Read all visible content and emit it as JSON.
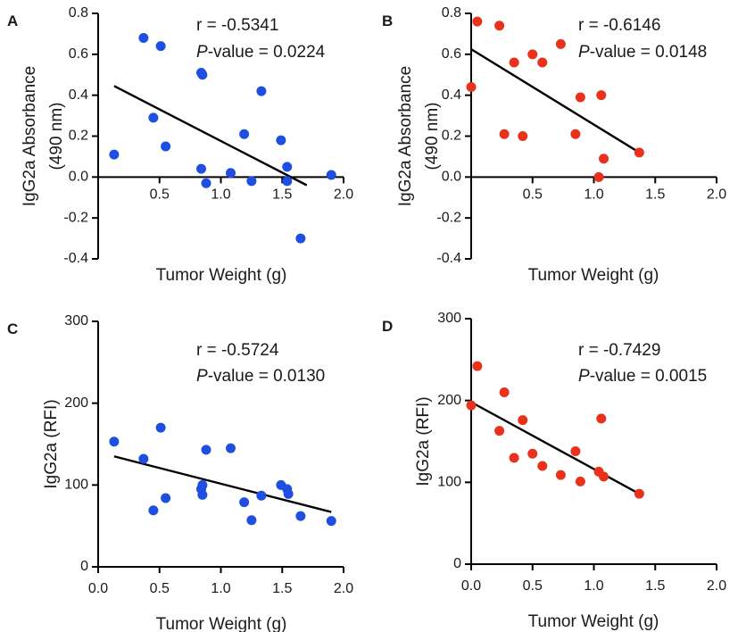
{
  "chart_data": [
    {
      "panel_label": "A",
      "type": "scatter",
      "color": "#1f4fe0",
      "ylabel_line1": "IgG2a Absorbance",
      "ylabel_line2": "(490 nm)",
      "xlabel": "Tumor Weight (g)",
      "xlim": [
        0,
        2.0
      ],
      "ylim": [
        -0.4,
        0.8
      ],
      "x_ticks": [
        0.5,
        1.0,
        1.5,
        2.0
      ],
      "x_tick_labels": [
        "0.5",
        "1.0",
        "1.5",
        "2.0"
      ],
      "y_ticks": [
        -0.4,
        -0.2,
        0.0,
        0.2,
        0.4,
        0.6,
        0.8
      ],
      "y_tick_labels": [
        "-0.4",
        "-0.2",
        "0.0",
        "0.2",
        "0.4",
        "0.6",
        "0.8"
      ],
      "annotation_r": "r = -0.5341",
      "annotation_p_italic": "P",
      "annotation_p_rest": "-value = 0.0224",
      "points": [
        [
          0.13,
          0.11
        ],
        [
          0.37,
          0.68
        ],
        [
          0.45,
          0.29
        ],
        [
          0.51,
          0.64
        ],
        [
          0.55,
          0.15
        ],
        [
          0.84,
          0.51
        ],
        [
          0.85,
          0.5
        ],
        [
          0.84,
          0.04
        ],
        [
          0.88,
          -0.03
        ],
        [
          1.08,
          0.02
        ],
        [
          1.19,
          0.21
        ],
        [
          1.25,
          -0.02
        ],
        [
          1.33,
          0.42
        ],
        [
          1.49,
          0.18
        ],
        [
          1.54,
          0.05
        ],
        [
          1.54,
          -0.02
        ],
        [
          1.65,
          -0.3
        ],
        [
          1.9,
          0.01
        ]
      ],
      "regression": {
        "x": [
          0.13,
          1.7
        ],
        "y": [
          0.445,
          -0.04
        ]
      }
    },
    {
      "panel_label": "B",
      "type": "scatter",
      "color": "#e8321c",
      "ylabel_line1": "IgG2a Absorbance",
      "ylabel_line2": "(490 nm)",
      "xlabel": "Tumor Weight (g)",
      "xlim": [
        0,
        2.0
      ],
      "ylim": [
        -0.4,
        0.8
      ],
      "x_ticks": [
        0.5,
        1.0,
        1.5,
        2.0
      ],
      "x_tick_labels": [
        "0.5",
        "1.0",
        "1.5",
        "2.0"
      ],
      "y_ticks": [
        -0.4,
        -0.2,
        0.0,
        0.2,
        0.4,
        0.6,
        0.8
      ],
      "y_tick_labels": [
        "-0.4",
        "-0.2",
        "0.0",
        "0.2",
        "0.4",
        "0.6",
        "0.8"
      ],
      "annotation_r": "r = -0.6146",
      "annotation_p_italic": "P",
      "annotation_p_rest": "-value = 0.0148",
      "points": [
        [
          0.0,
          0.44
        ],
        [
          0.05,
          0.76
        ],
        [
          0.23,
          0.74
        ],
        [
          0.27,
          0.21
        ],
        [
          0.35,
          0.56
        ],
        [
          0.42,
          0.2
        ],
        [
          0.5,
          0.6
        ],
        [
          0.58,
          0.56
        ],
        [
          0.73,
          0.65
        ],
        [
          0.85,
          0.21
        ],
        [
          0.89,
          0.39
        ],
        [
          1.04,
          0.0
        ],
        [
          1.06,
          0.4
        ],
        [
          1.08,
          0.09
        ],
        [
          1.37,
          0.12
        ]
      ],
      "regression": {
        "x": [
          0.0,
          1.37
        ],
        "y": [
          0.625,
          0.12
        ]
      }
    },
    {
      "panel_label": "C",
      "type": "scatter",
      "color": "#1f4fe0",
      "ylabel_line1": "IgG2a (RFI)",
      "xlabel": "Tumor Weight (g)",
      "xlim": [
        0,
        2.0
      ],
      "ylim": [
        0,
        300
      ],
      "x_ticks": [
        0.0,
        0.5,
        1.0,
        1.5,
        2.0
      ],
      "x_tick_labels": [
        "0.0",
        "0.5",
        "1.0",
        "1.5",
        "2.0"
      ],
      "y_ticks": [
        0,
        100,
        200,
        300
      ],
      "y_tick_labels": [
        "0",
        "100",
        "200",
        "300"
      ],
      "annotation_r": "r = -0.5724",
      "annotation_p_italic": "P",
      "annotation_p_rest": "-value = 0.0130",
      "points": [
        [
          0.13,
          153
        ],
        [
          0.37,
          132
        ],
        [
          0.45,
          69
        ],
        [
          0.51,
          170
        ],
        [
          0.55,
          84
        ],
        [
          0.84,
          95
        ],
        [
          0.85,
          88
        ],
        [
          0.85,
          100
        ],
        [
          0.88,
          143
        ],
        [
          1.08,
          145
        ],
        [
          1.19,
          79
        ],
        [
          1.25,
          57
        ],
        [
          1.33,
          87
        ],
        [
          1.49,
          100
        ],
        [
          1.54,
          95
        ],
        [
          1.55,
          89
        ],
        [
          1.65,
          62
        ],
        [
          1.9,
          56
        ]
      ],
      "regression": {
        "x": [
          0.13,
          1.9
        ],
        "y": [
          135,
          67
        ]
      }
    },
    {
      "panel_label": "D",
      "type": "scatter",
      "color": "#e8321c",
      "ylabel_line1": "IgG2a (RFI)",
      "xlabel": "Tumor Weight (g)",
      "xlim": [
        0,
        2.0
      ],
      "ylim": [
        0,
        300
      ],
      "x_ticks": [
        0.0,
        0.5,
        1.0,
        1.5,
        2.0
      ],
      "x_tick_labels": [
        "0.0",
        "0.5",
        "1.0",
        "1.5",
        "2.0"
      ],
      "y_ticks": [
        0,
        100,
        200,
        300
      ],
      "y_tick_labels": [
        "0",
        "100",
        "200",
        "300"
      ],
      "annotation_r": "r = -0.7429",
      "annotation_p_italic": "P",
      "annotation_p_rest": "-value = 0.0015",
      "points": [
        [
          0.0,
          194
        ],
        [
          0.05,
          242
        ],
        [
          0.23,
          163
        ],
        [
          0.27,
          210
        ],
        [
          0.35,
          130
        ],
        [
          0.42,
          176
        ],
        [
          0.5,
          135
        ],
        [
          0.58,
          120
        ],
        [
          0.73,
          109
        ],
        [
          0.85,
          138
        ],
        [
          0.89,
          101
        ],
        [
          1.04,
          113
        ],
        [
          1.06,
          178
        ],
        [
          1.08,
          107
        ],
        [
          1.37,
          86
        ]
      ],
      "regression": {
        "x": [
          0.0,
          1.37
        ],
        "y": [
          198,
          86
        ]
      }
    }
  ]
}
